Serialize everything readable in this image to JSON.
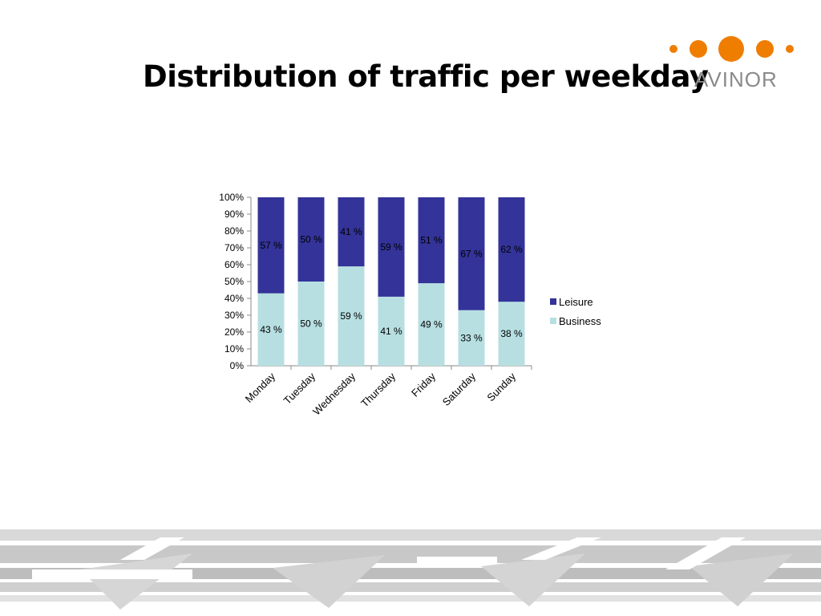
{
  "title": "Distribution of traffic per weekday",
  "logo": {
    "text": "AVINOR",
    "dot_color": "#ef7d00",
    "text_color": "#8a8a8a"
  },
  "colors": {
    "leisure": "#333399",
    "business": "#b7dfe2"
  },
  "chart_data": {
    "type": "bar",
    "stacked": true,
    "categories": [
      "Monday",
      "Tuesday",
      "Wednesday",
      "Thursday",
      "Friday",
      "Saturday",
      "Sunday"
    ],
    "series": [
      {
        "name": "Business",
        "values": [
          43,
          50,
          59,
          41,
          49,
          33,
          38
        ],
        "labels": [
          "43 %",
          "50 %",
          "59 %",
          "41 %",
          "49 %",
          "33 %",
          "38 %"
        ]
      },
      {
        "name": "Leisure",
        "values": [
          57,
          50,
          41,
          59,
          51,
          67,
          62
        ],
        "labels": [
          "57 %",
          "50 %",
          "41 %",
          "59 %",
          "51 %",
          "67 %",
          "62 %"
        ]
      }
    ],
    "yticks": [
      "0%",
      "10%",
      "20%",
      "30%",
      "40%",
      "50%",
      "60%",
      "70%",
      "80%",
      "90%",
      "100%"
    ],
    "ylim": [
      0,
      100
    ],
    "legend_position": "right",
    "grid": false
  }
}
